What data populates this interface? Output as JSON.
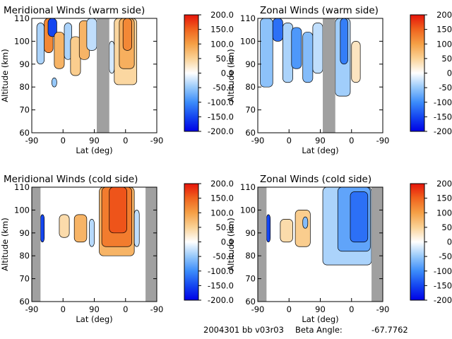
{
  "footer": {
    "run_id": "2004301 bb v03r03",
    "beta_label": "Beta Angle:",
    "beta_value": "-67.7762"
  },
  "chart_data": [
    {
      "type": "heatmap",
      "title": "Meridional Winds (warm side)",
      "xlabel": "Lat (deg)",
      "ylabel": "Altitude (km)",
      "x_ticks": [
        "-90",
        "0",
        "90",
        "0",
        "-90"
      ],
      "y_ticks": [
        "110",
        "100",
        "90",
        "80",
        "70",
        "60"
      ],
      "ylim": [
        60,
        110
      ],
      "colorbar": {
        "min": -200,
        "max": 200,
        "labels": [
          "200.0",
          "150.0",
          "100.0",
          "50.0",
          "0.0",
          "-50.0",
          "-100.0",
          "-150.0",
          "-200.0"
        ]
      },
      "no_data_bands": [
        [
          0.52,
          0.62
        ]
      ],
      "cells": [
        {
          "x0": 0.04,
          "x1": 0.1,
          "y0": 90,
          "y1": 108,
          "v": -40
        },
        {
          "x0": 0.1,
          "x1": 0.17,
          "y0": 95,
          "y1": 110,
          "v": 120
        },
        {
          "x0": 0.13,
          "x1": 0.2,
          "y0": 102,
          "y1": 110,
          "v": -150
        },
        {
          "x0": 0.18,
          "x1": 0.26,
          "y0": 88,
          "y1": 104,
          "v": 80
        },
        {
          "x0": 0.26,
          "x1": 0.32,
          "y0": 92,
          "y1": 108,
          "v": -40
        },
        {
          "x0": 0.31,
          "x1": 0.39,
          "y0": 85,
          "y1": 102,
          "v": 55
        },
        {
          "x0": 0.38,
          "x1": 0.46,
          "y0": 92,
          "y1": 109,
          "v": 80
        },
        {
          "x0": 0.44,
          "x1": 0.52,
          "y0": 96,
          "y1": 110,
          "v": -30
        },
        {
          "x0": 0.16,
          "x1": 0.2,
          "y0": 80,
          "y1": 84,
          "v": -50
        },
        {
          "x0": 0.62,
          "x1": 0.66,
          "y0": 86,
          "y1": 100,
          "v": -20
        },
        {
          "x0": 0.66,
          "x1": 0.84,
          "y0": 81,
          "y1": 110,
          "v": 45
        },
        {
          "x0": 0.7,
          "x1": 0.82,
          "y0": 88,
          "y1": 110,
          "v": 85
        },
        {
          "x0": 0.73,
          "x1": 0.8,
          "y0": 96,
          "y1": 110,
          "v": 120
        }
      ]
    },
    {
      "type": "heatmap",
      "title": "Zonal Winds (warm side)",
      "xlabel": "Lat (deg)",
      "ylabel": "Altitude (km)",
      "x_ticks": [
        "-90",
        "0",
        "90",
        "0",
        "-90"
      ],
      "y_ticks": [
        "110",
        "100",
        "90",
        "80",
        "70",
        "60"
      ],
      "ylim": [
        60,
        110
      ],
      "colorbar": {
        "min": -200,
        "max": 200,
        "labels": [
          "200.0",
          "150.0",
          "100.0",
          "50.0",
          "0.0",
          "-50.0",
          "-100.0",
          "-150.0",
          "-200.0"
        ]
      },
      "no_data_bands": [
        [
          0.52,
          0.62
        ]
      ],
      "cells": [
        {
          "x0": 0.02,
          "x1": 0.12,
          "y0": 80,
          "y1": 110,
          "v": -55
        },
        {
          "x0": 0.12,
          "x1": 0.2,
          "y0": 100,
          "y1": 110,
          "v": -120
        },
        {
          "x0": 0.2,
          "x1": 0.28,
          "y0": 82,
          "y1": 108,
          "v": -40
        },
        {
          "x0": 0.27,
          "x1": 0.35,
          "y0": 88,
          "y1": 106,
          "v": -90
        },
        {
          "x0": 0.36,
          "x1": 0.44,
          "y0": 82,
          "y1": 104,
          "v": -60
        },
        {
          "x0": 0.44,
          "x1": 0.52,
          "y0": 86,
          "y1": 108,
          "v": -30
        },
        {
          "x0": 0.62,
          "x1": 0.74,
          "y0": 76,
          "y1": 110,
          "v": -45
        },
        {
          "x0": 0.66,
          "x1": 0.72,
          "y0": 90,
          "y1": 110,
          "v": -110
        },
        {
          "x0": 0.75,
          "x1": 0.82,
          "y0": 82,
          "y1": 100,
          "v": 30
        }
      ]
    },
    {
      "type": "heatmap",
      "title": "Meridional Winds (cold side)",
      "xlabel": "Lat (deg)",
      "ylabel": "Altitude (km)",
      "x_ticks": [
        "-90",
        "0",
        "90",
        "0",
        "-90"
      ],
      "y_ticks": [
        "110",
        "100",
        "90",
        "80",
        "70",
        "60"
      ],
      "ylim": [
        60,
        110
      ],
      "colorbar": {
        "min": -200,
        "max": 200,
        "labels": [
          "200.0",
          "150.0",
          "100.0",
          "50.0",
          "0.0",
          "-50.0",
          "-100.0",
          "-150.0",
          "-200.0"
        ]
      },
      "no_data_bands": [
        [
          0.0,
          0.07
        ],
        [
          0.91,
          1.0
        ]
      ],
      "cells": [
        {
          "x0": 0.07,
          "x1": 0.1,
          "y0": 86,
          "y1": 98,
          "v": -150
        },
        {
          "x0": 0.22,
          "x1": 0.3,
          "y0": 88,
          "y1": 98,
          "v": 40
        },
        {
          "x0": 0.34,
          "x1": 0.44,
          "y0": 86,
          "y1": 98,
          "v": 80
        },
        {
          "x0": 0.46,
          "x1": 0.5,
          "y0": 84,
          "y1": 96,
          "v": -35
        },
        {
          "x0": 0.54,
          "x1": 0.82,
          "y0": 80,
          "y1": 111,
          "v": 80
        },
        {
          "x0": 0.56,
          "x1": 0.8,
          "y0": 84,
          "y1": 111,
          "v": 130
        },
        {
          "x0": 0.62,
          "x1": 0.76,
          "y0": 90,
          "y1": 110,
          "v": 160
        },
        {
          "x0": 0.82,
          "x1": 0.86,
          "y0": 84,
          "y1": 100,
          "v": -30
        }
      ]
    },
    {
      "type": "heatmap",
      "title": "Zonal Winds (cold side)",
      "xlabel": "Lat (deg)",
      "ylabel": "Altitude (km)",
      "x_ticks": [
        "-90",
        "0",
        "90",
        "0",
        "-90"
      ],
      "y_ticks": [
        "110",
        "100",
        "90",
        "80",
        "70",
        "60"
      ],
      "ylim": [
        60,
        110
      ],
      "colorbar": {
        "min": -200,
        "max": 200,
        "labels": [
          "200.0",
          "150.0",
          "100.0",
          "50.0",
          "0.0",
          "-50.0",
          "-100.0",
          "-150.0",
          "-200.0"
        ]
      },
      "no_data_bands": [
        [
          0.0,
          0.07
        ],
        [
          0.91,
          1.0
        ]
      ],
      "cells": [
        {
          "x0": 0.07,
          "x1": 0.1,
          "y0": 86,
          "y1": 98,
          "v": -150
        },
        {
          "x0": 0.18,
          "x1": 0.28,
          "y0": 86,
          "y1": 96,
          "v": 40
        },
        {
          "x0": 0.3,
          "x1": 0.42,
          "y0": 84,
          "y1": 100,
          "v": 55
        },
        {
          "x0": 0.36,
          "x1": 0.4,
          "y0": 92,
          "y1": 97,
          "v": -60
        },
        {
          "x0": 0.52,
          "x1": 0.91,
          "y0": 76,
          "y1": 110,
          "v": -40
        },
        {
          "x0": 0.64,
          "x1": 0.9,
          "y0": 82,
          "y1": 110,
          "v": -80
        },
        {
          "x0": 0.74,
          "x1": 0.88,
          "y0": 86,
          "y1": 108,
          "v": -120
        }
      ]
    }
  ]
}
